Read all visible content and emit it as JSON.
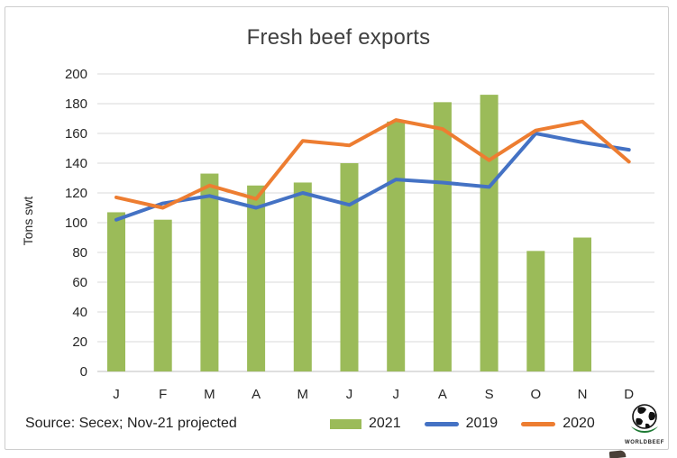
{
  "title": "Fresh beef exports",
  "y_axis_label": "Tons swt",
  "source_note": "Source: Secex; Nov-21 projected",
  "logo_text": "WORLDBEEF",
  "colors": {
    "bar_2021": "#9bbb59",
    "line_2019": "#4472c4",
    "line_2020": "#ed7d31",
    "gridline": "#d9d9d9",
    "baseline": "#bfbfbf",
    "title_text": "#3f3f3f",
    "axis_text": "#262626"
  },
  "legend": {
    "items": [
      {
        "label": "2021",
        "swatch": "bar",
        "color": "#9bbb59"
      },
      {
        "label": "2019",
        "swatch": "line",
        "color": "#4472c4"
      },
      {
        "label": "2020",
        "swatch": "line",
        "color": "#ed7d31"
      }
    ]
  },
  "chart_data": {
    "type": "bar+line",
    "title": "Fresh beef exports",
    "xlabel": "",
    "ylabel": "Tons swt",
    "categories": [
      "J",
      "F",
      "M",
      "A",
      "M",
      "J",
      "J",
      "A",
      "S",
      "O",
      "N",
      "D"
    ],
    "series": [
      {
        "name": "2021",
        "type": "bar",
        "color": "#9bbb59",
        "values": [
          107,
          102,
          133,
          125,
          127,
          140,
          168,
          181,
          186,
          81,
          90,
          null
        ]
      },
      {
        "name": "2019",
        "type": "line",
        "color": "#4472c4",
        "values": [
          102,
          113,
          118,
          110,
          120,
          112,
          129,
          127,
          124,
          160,
          154,
          149
        ]
      },
      {
        "name": "2020",
        "type": "line",
        "color": "#ed7d31",
        "values": [
          117,
          110,
          125,
          116,
          155,
          152,
          169,
          163,
          142,
          162,
          168,
          141
        ]
      }
    ],
    "ylim": [
      0,
      200
    ],
    "yticks": [
      0,
      20,
      40,
      60,
      80,
      100,
      120,
      140,
      160,
      180,
      200
    ],
    "grid": true,
    "legend_position": "bottom"
  }
}
